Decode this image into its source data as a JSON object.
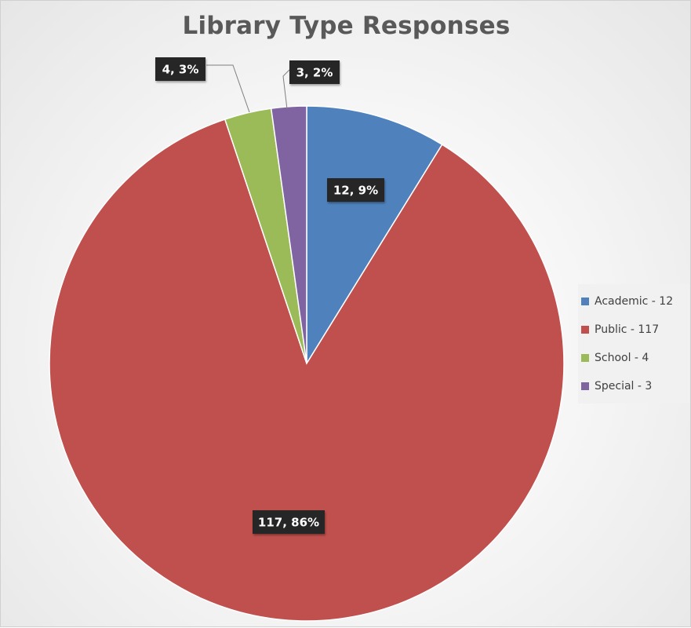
{
  "chart_data": {
    "type": "pie",
    "title": "Library Type Responses",
    "categories": [
      "Academic",
      "Public",
      "School",
      "Special"
    ],
    "values": [
      12,
      117,
      4,
      3
    ],
    "percents": [
      9,
      86,
      3,
      2
    ],
    "colors": [
      "#4f81bd",
      "#c0504d",
      "#9bbb59",
      "#8064a2"
    ],
    "data_labels": [
      "12, 9%",
      "117, 86%",
      "4, 3%",
      "3, 2%"
    ],
    "legend": {
      "position": "right",
      "entries": [
        "Academic - 12",
        "Public - 117",
        "School - 4",
        "Special - 3"
      ]
    },
    "start_angle_deg": 0,
    "direction": "clockwise"
  }
}
